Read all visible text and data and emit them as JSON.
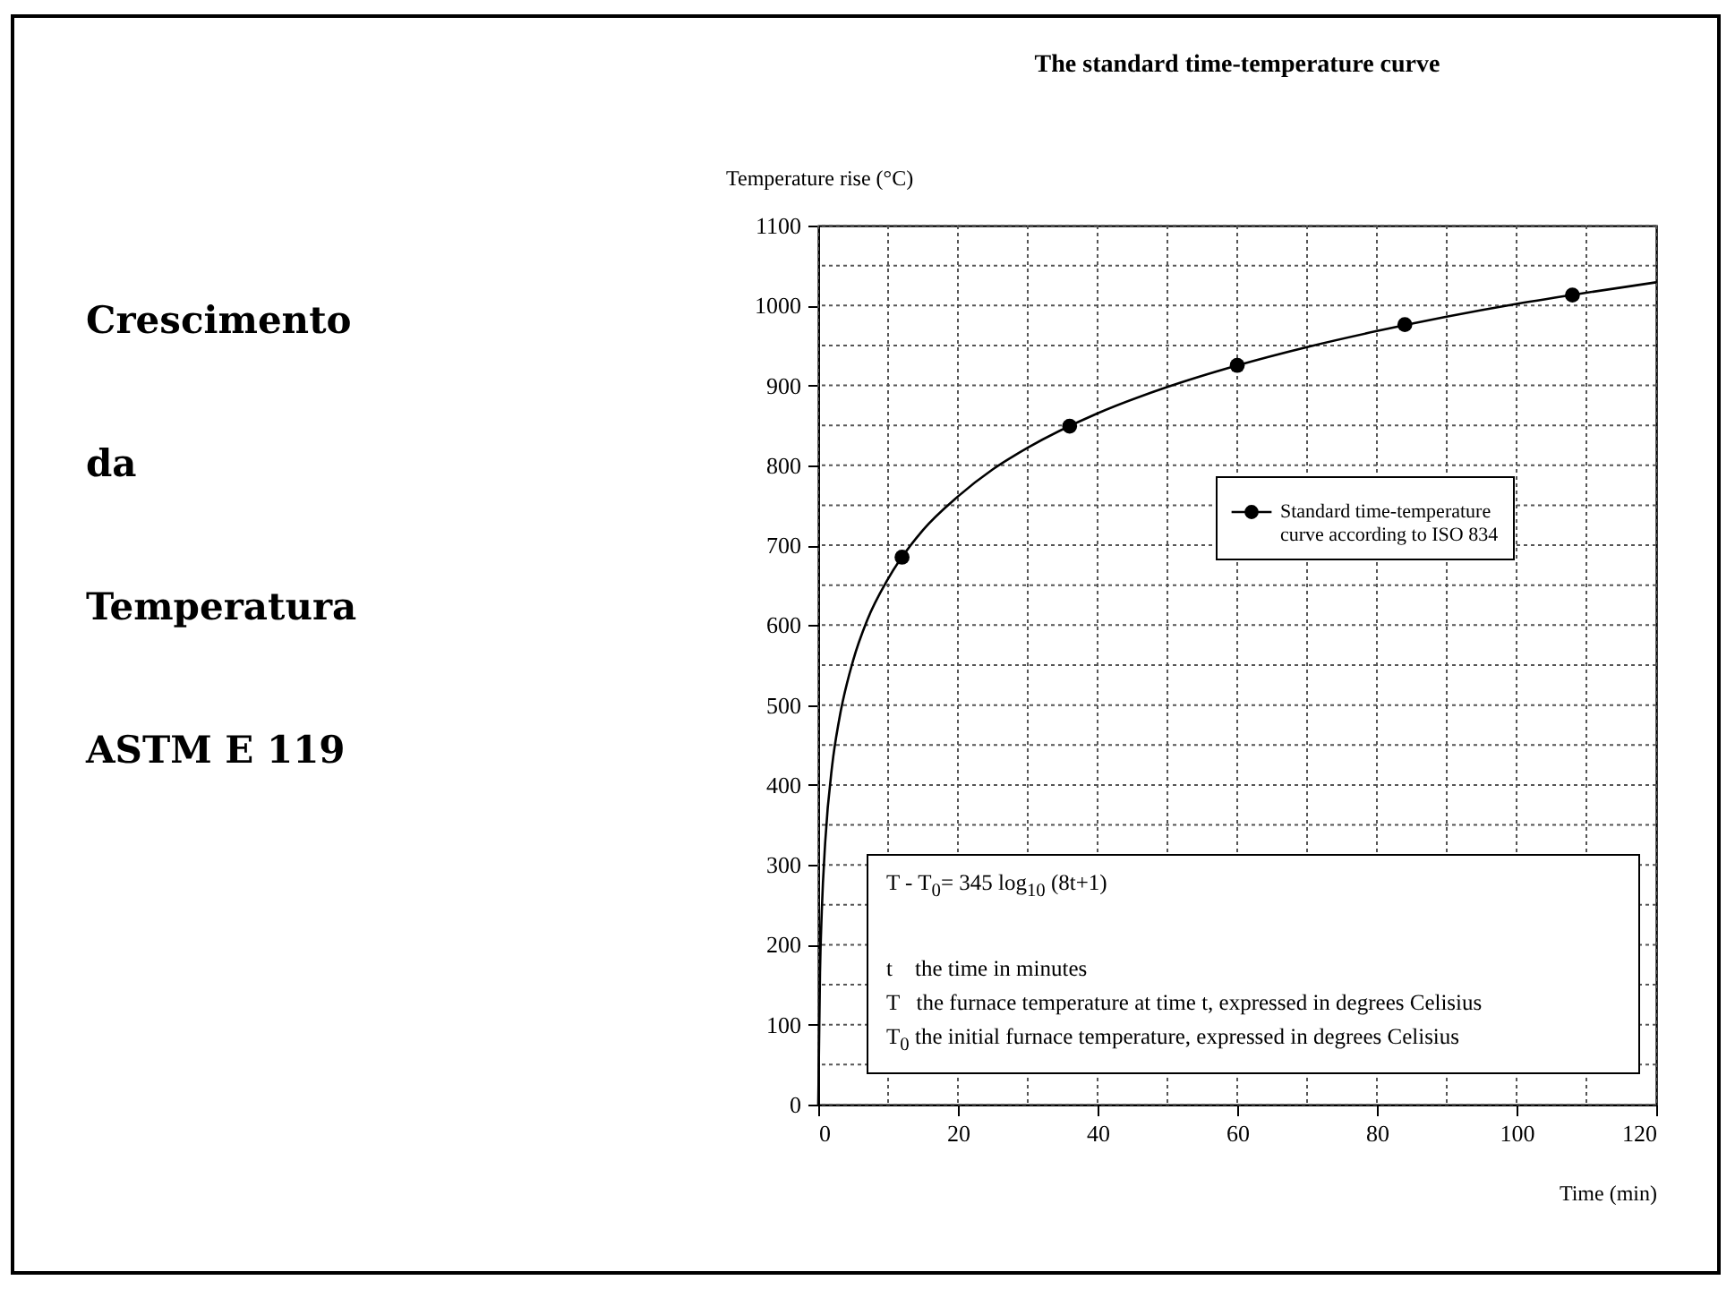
{
  "chart_data": {
    "type": "line",
    "title": "The standard time-temperature curve",
    "xlabel": "Time (min)",
    "ylabel": "Temperature rise (°C)",
    "xlim": [
      0,
      120
    ],
    "ylim": [
      0,
      1100
    ],
    "xticks": [
      0,
      {
        "value": 10,
        "label": null
      },
      20,
      {
        "value": 30,
        "label": null
      },
      40,
      {
        "value": 50,
        "label": null
      },
      60,
      {
        "value": 70,
        "label": null
      },
      80,
      {
        "value": 90,
        "label": null
      },
      100,
      {
        "value": 110,
        "label": null
      },
      120
    ],
    "yticks": [
      0,
      {
        "value": 50,
        "label": null
      },
      100,
      {
        "value": 150,
        "label": null
      },
      200,
      {
        "value": 250,
        "label": null
      },
      300,
      {
        "value": 350,
        "label": null
      },
      400,
      {
        "value": 450,
        "label": null
      },
      500,
      {
        "value": 550,
        "label": null
      },
      600,
      {
        "value": 650,
        "label": null
      },
      700,
      {
        "value": 750,
        "label": null
      },
      800,
      {
        "value": 850,
        "label": null
      },
      900,
      {
        "value": 950,
        "label": null
      },
      1000,
      {
        "value": 1050,
        "label": null
      },
      1100
    ],
    "grid": true,
    "legend": "right",
    "line_style": "solid",
    "series": [
      {
        "name": "Standard time-temperature curve according to ISO 834",
        "color": "#000000",
        "marker": "none",
        "x": [
          0,
          0.25,
          0.5,
          1,
          2,
          3,
          5,
          7,
          10,
          15,
          20,
          25,
          30,
          40,
          50,
          60,
          70,
          80,
          90,
          100,
          110,
          120
        ],
        "values": [
          0,
          165,
          241,
          329,
          425,
          482,
          556,
          606,
          658,
          719,
          761,
          795,
          822,
          865,
          898,
          925,
          948,
          968,
          986,
          1002,
          1016,
          1029
        ]
      },
      {
        "type": "scatter",
        "color": "#000000",
        "marker": "circle",
        "x": [
          12,
          36,
          60,
          84,
          108
        ],
        "values": [
          685,
          849,
          925,
          976,
          1013
        ]
      }
    ],
    "annotations": [
      "Crescimento",
      "da",
      "Temperatura",
      "ASTM E 119",
      "T - T$_{0}$= 345 log$_{10}$ (8t+1)",
      "t    the time in minutes",
      "T   the furnace temperature at time t, expressed in degrees Celisius",
      "T$_{0}$ the initial furnace temperature, expressed in degrees Celisius"
    ]
  }
}
